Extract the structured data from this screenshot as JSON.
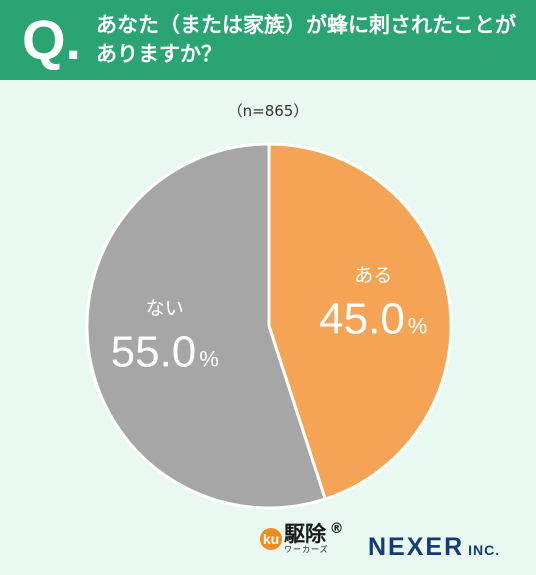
{
  "header": {
    "q_mark": "Q.",
    "question": "あなた（または家族）が蜂に刺されたことがありますか？"
  },
  "sample_size": "（n=865）",
  "chart_data": {
    "type": "pie",
    "title": "あなた（または家族）が蜂に刺されたことがありますか？",
    "slices": [
      {
        "label": "ある",
        "value": 45.0,
        "color": "#f5a455"
      },
      {
        "label": "ない",
        "value": 55.0,
        "color": "#a6a6a6"
      }
    ],
    "unit": "%"
  },
  "branding": {
    "ku_badge": "ku",
    "ku_main": "駆除",
    "ku_sub": "ワーカーズ",
    "ku_reg": "®",
    "nexer_main": "NEXER",
    "nexer_inc": "INC."
  }
}
